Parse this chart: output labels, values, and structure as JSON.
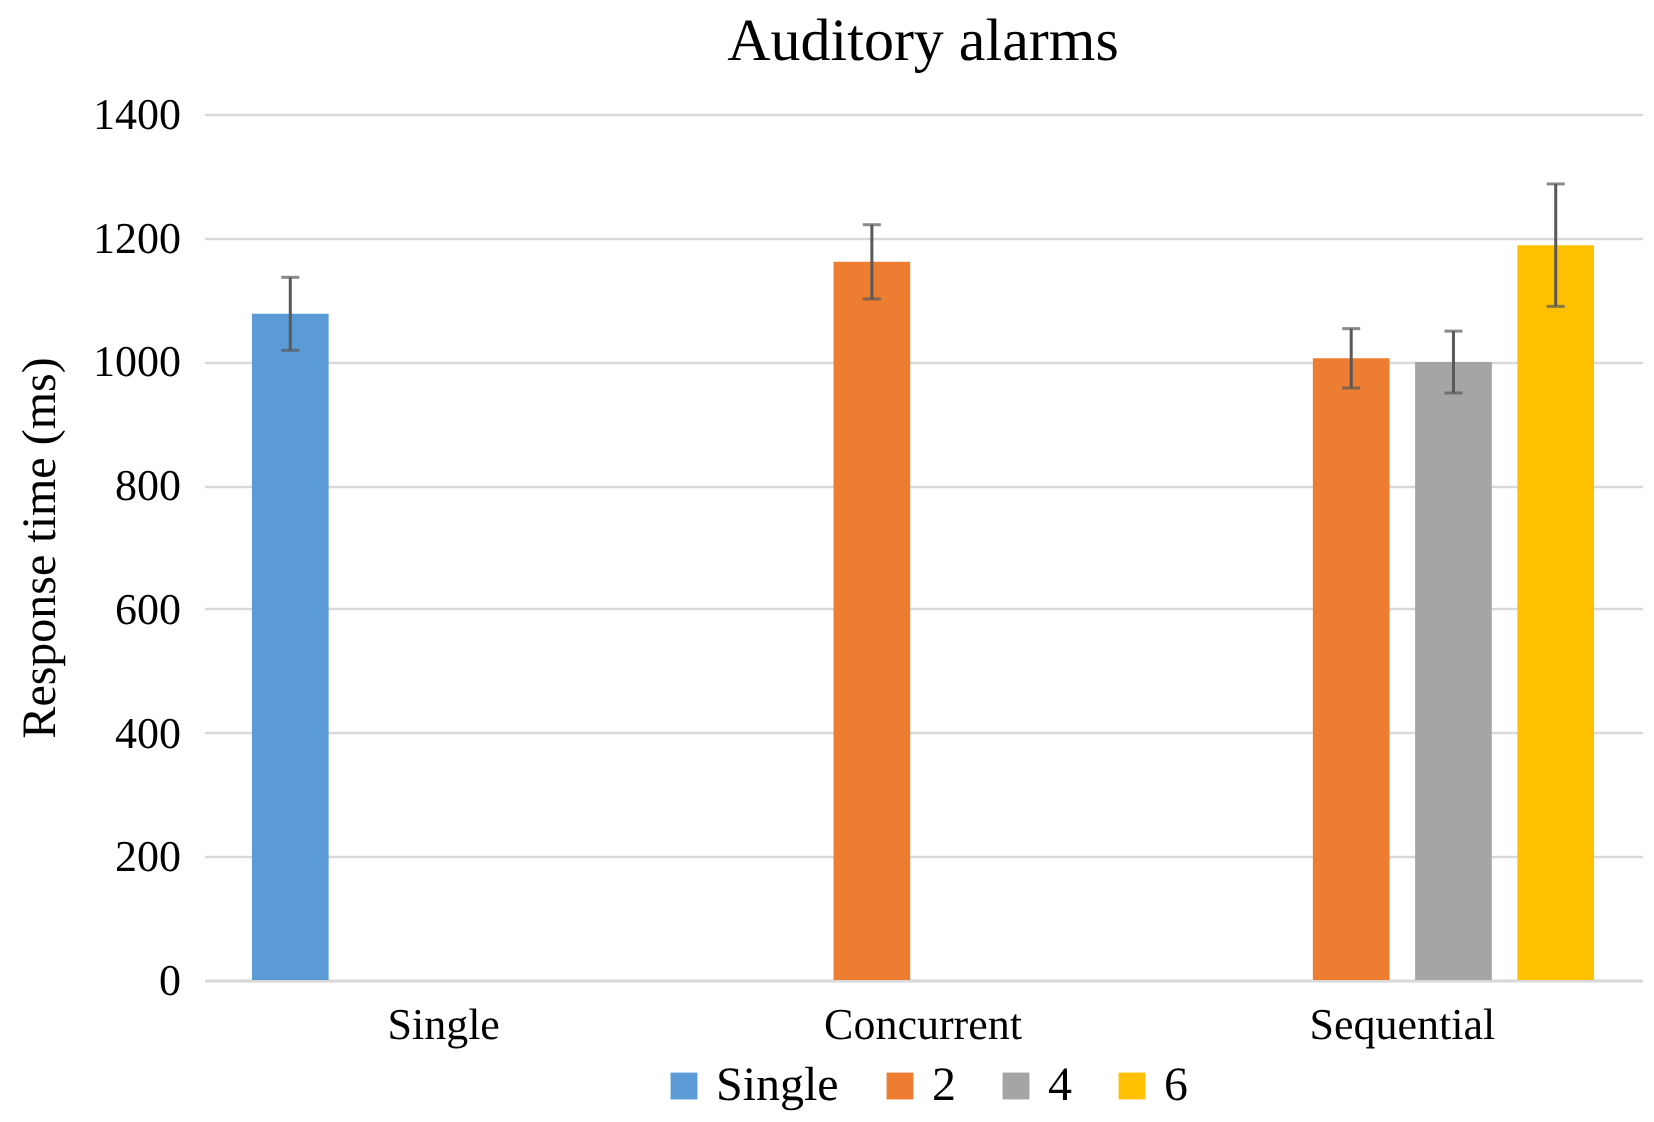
{
  "chart_data": {
    "type": "bar",
    "title": "Auditory alarms",
    "ylabel": "Response time (ms)",
    "categories": [
      "Single",
      "Concurrent",
      "Sequential"
    ],
    "series": [
      {
        "name": "Single",
        "color": "#5b9bd5",
        "values": [
          1077,
          null,
          null
        ],
        "errors": [
          59,
          null,
          null
        ]
      },
      {
        "name": "2",
        "color": "#ed7d31",
        "values": [
          null,
          1161,
          1005
        ],
        "errors": [
          null,
          60,
          48
        ]
      },
      {
        "name": "4",
        "color": "#a5a5a5",
        "values": [
          null,
          null,
          999
        ],
        "errors": [
          null,
          null,
          50
        ]
      },
      {
        "name": "6",
        "color": "#ffc000",
        "values": [
          null,
          null,
          1188
        ],
        "errors": [
          null,
          null,
          99
        ]
      }
    ],
    "ylim": [
      0,
      1400
    ],
    "yticks": [
      0,
      200,
      400,
      600,
      800,
      1000,
      1200,
      1400
    ],
    "grid": "y",
    "legend": "bottom"
  }
}
